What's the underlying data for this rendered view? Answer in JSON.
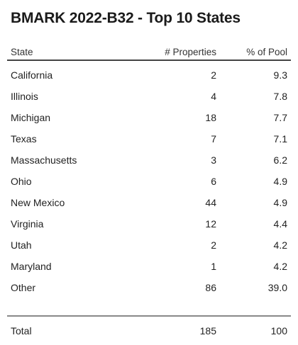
{
  "title": "BMARK 2022-B32 - Top 10 States",
  "columns": {
    "state": "State",
    "properties": "# Properties",
    "pool": "% of Pool"
  },
  "rows": [
    {
      "state": "California",
      "properties": "2",
      "pool": "9.3"
    },
    {
      "state": "Illinois",
      "properties": "4",
      "pool": "7.8"
    },
    {
      "state": "Michigan",
      "properties": "18",
      "pool": "7.7"
    },
    {
      "state": "Texas",
      "properties": "7",
      "pool": "7.1"
    },
    {
      "state": "Massachusetts",
      "properties": "3",
      "pool": "6.2"
    },
    {
      "state": "Ohio",
      "properties": "6",
      "pool": "4.9"
    },
    {
      "state": "New Mexico",
      "properties": "44",
      "pool": "4.9"
    },
    {
      "state": "Virginia",
      "properties": "12",
      "pool": "4.4"
    },
    {
      "state": "Utah",
      "properties": "2",
      "pool": "4.2"
    },
    {
      "state": "Maryland",
      "properties": "1",
      "pool": "4.2"
    },
    {
      "state": "Other",
      "properties": "86",
      "pool": "39.0"
    }
  ],
  "total": {
    "label": "Total",
    "properties": "185",
    "pool": "100"
  }
}
